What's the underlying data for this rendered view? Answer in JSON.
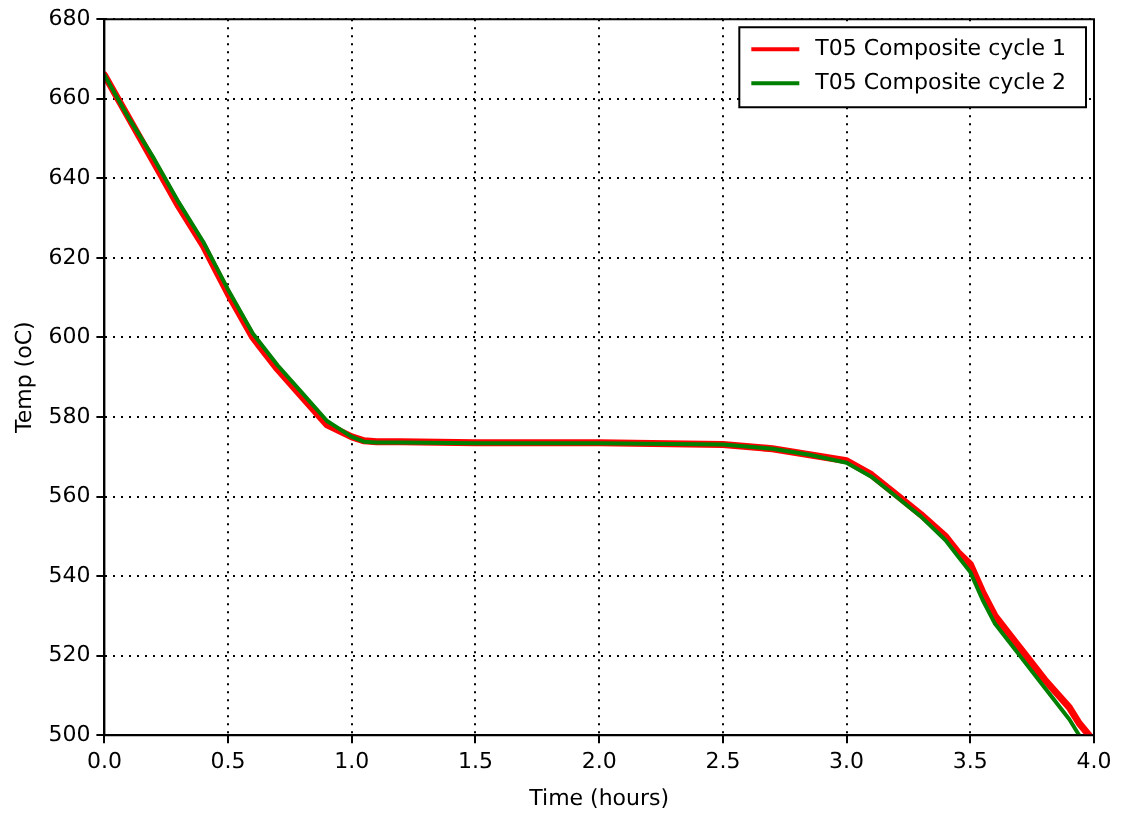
{
  "chart_data": {
    "type": "line",
    "xlabel": "Time (hours)",
    "ylabel": "Temp (oC)",
    "x": [
      0,
      0.1,
      0.2,
      0.3,
      0.4,
      0.45,
      0.5,
      0.6,
      0.7,
      0.8,
      0.9,
      1.0,
      1.05,
      1.1,
      1.2,
      1.5,
      2.0,
      2.5,
      2.7,
      2.85,
      3.0,
      3.1,
      3.2,
      3.3,
      3.4,
      3.45,
      3.5,
      3.55,
      3.6,
      3.7,
      3.8,
      3.9,
      3.94,
      3.98
    ],
    "series": [
      {
        "name": "T05 Composite cycle 1",
        "color": "#ff0000",
        "values": [
          666,
          655,
          644,
          633,
          623,
          617,
          611,
          600,
          592,
          585,
          578,
          575,
          574,
          573.8,
          573.8,
          573.5,
          573.5,
          573.1,
          572,
          570.5,
          569,
          565.5,
          560.5,
          555.5,
          550,
          546,
          543,
          536,
          530,
          522,
          514,
          507,
          503,
          500
        ]
      },
      {
        "name": "T05 Composite cycle 2",
        "color": "#008000",
        "values": [
          666,
          655,
          645,
          634,
          624,
          618,
          612,
          601,
          593,
          586,
          579,
          575,
          573.8,
          573.6,
          573.6,
          573.4,
          573.4,
          573.1,
          572,
          570.5,
          568.5,
          565,
          560,
          555,
          549,
          545,
          541,
          534,
          528,
          520,
          512,
          504,
          500,
          null
        ]
      }
    ],
    "xlim": [
      0,
      4
    ],
    "xticks": [
      {
        "value": 0,
        "label": "0.0"
      },
      {
        "value": 0.5,
        "label": "0.5"
      },
      {
        "value": 1,
        "label": "1.0"
      },
      {
        "value": 1.5,
        "label": "1.5"
      },
      {
        "value": 2,
        "label": "2.0"
      },
      {
        "value": 2.5,
        "label": "2.5"
      },
      {
        "value": 3,
        "label": "3.0"
      },
      {
        "value": 3.5,
        "label": "3.5"
      },
      {
        "value": 4,
        "label": "4.0"
      }
    ],
    "ylim": [
      500,
      680
    ],
    "yticks": [
      500,
      520,
      540,
      560,
      580,
      600,
      620,
      640,
      660,
      680
    ],
    "grid": true,
    "legend": "top right",
    "marker": "none",
    "line_style": "solid"
  }
}
